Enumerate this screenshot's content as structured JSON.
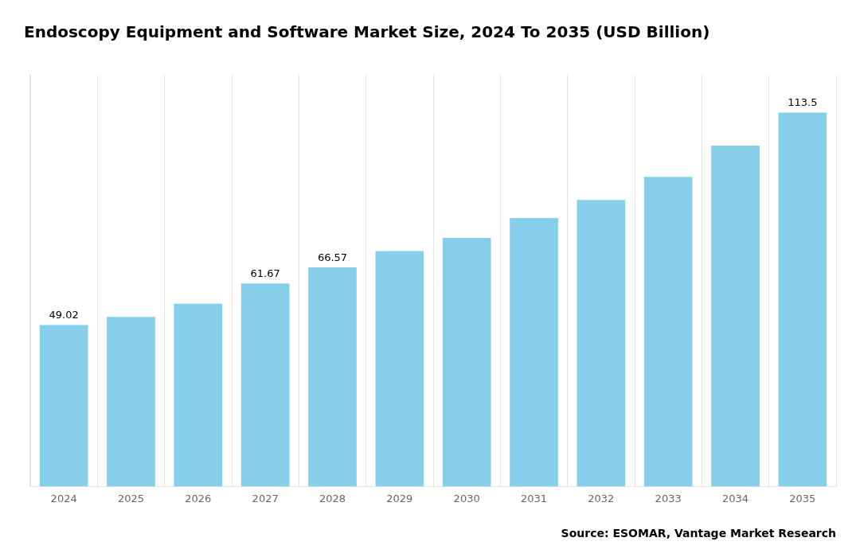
{
  "chart_data": {
    "type": "bar",
    "title": "Endoscopy Equipment and Software Market Size, 2024 To 2035 (USD Billion)",
    "annotations": [
      "Source: ESOMAR, Vantage Market Research"
    ],
    "categories": [
      "2024",
      "2025",
      "2026",
      "2027",
      "2028",
      "2029",
      "2030",
      "2031",
      "2032",
      "2033",
      "2034",
      "2035"
    ],
    "values": [
      49.02,
      51.5,
      55.5,
      61.67,
      66.57,
      71.5,
      75.5,
      81.5,
      87.0,
      94.0,
      103.5,
      113.5
    ],
    "value_labels": [
      "49.02",
      null,
      null,
      "61.67",
      "66.57",
      null,
      null,
      null,
      null,
      null,
      null,
      "113.5"
    ],
    "color": "#87CEEB",
    "ylim": [
      0,
      125
    ],
    "grid": "x",
    "tick_labels": "x"
  }
}
